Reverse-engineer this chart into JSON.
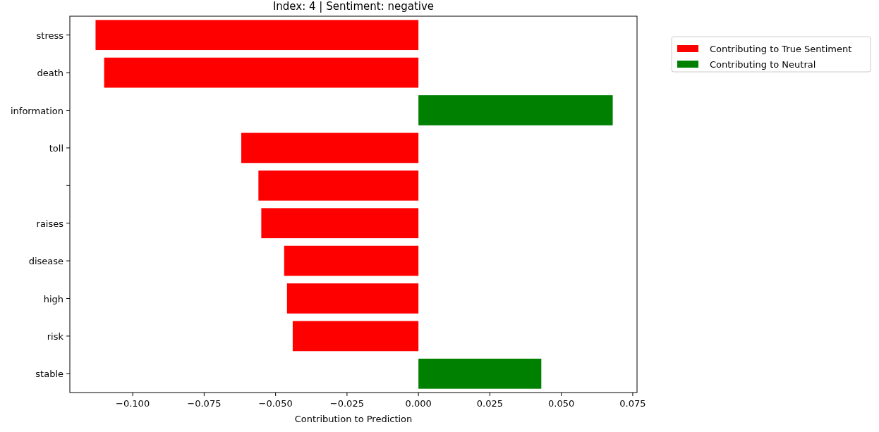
{
  "chart_data": {
    "type": "bar",
    "orientation": "horizontal",
    "title": "Index: 4 | Sentiment: negative",
    "xlabel": "Contribution to Prediction",
    "categories": [
      "stress",
      "death",
      "information",
      "toll",
      null,
      "raises",
      "disease",
      "high",
      "risk",
      "stable"
    ],
    "series": [
      {
        "name": "Contributing to True Sentiment",
        "color": "#ff0000",
        "values": [
          -0.113,
          -0.11,
          null,
          -0.062,
          -0.056,
          -0.055,
          -0.047,
          -0.046,
          -0.044,
          null
        ]
      },
      {
        "name": "Contributing to Neutral",
        "color": "#008000",
        "values": [
          null,
          null,
          0.068,
          null,
          null,
          null,
          null,
          null,
          null,
          0.043
        ]
      }
    ],
    "xlim": [
      -0.122,
      0.0765
    ],
    "xticks": [
      {
        "value": -0.1,
        "label": "−0.100"
      },
      {
        "value": -0.075,
        "label": "−0.075"
      },
      {
        "value": -0.05,
        "label": "−0.050"
      },
      {
        "value": -0.025,
        "label": "−0.025"
      },
      {
        "value": 0,
        "label": "0.000"
      },
      {
        "value": 0.025,
        "label": "0.025"
      },
      {
        "value": 0.05,
        "label": "0.050"
      },
      {
        "value": 0.075,
        "label": "0.075"
      }
    ],
    "legend": "top right",
    "grid": false
  }
}
